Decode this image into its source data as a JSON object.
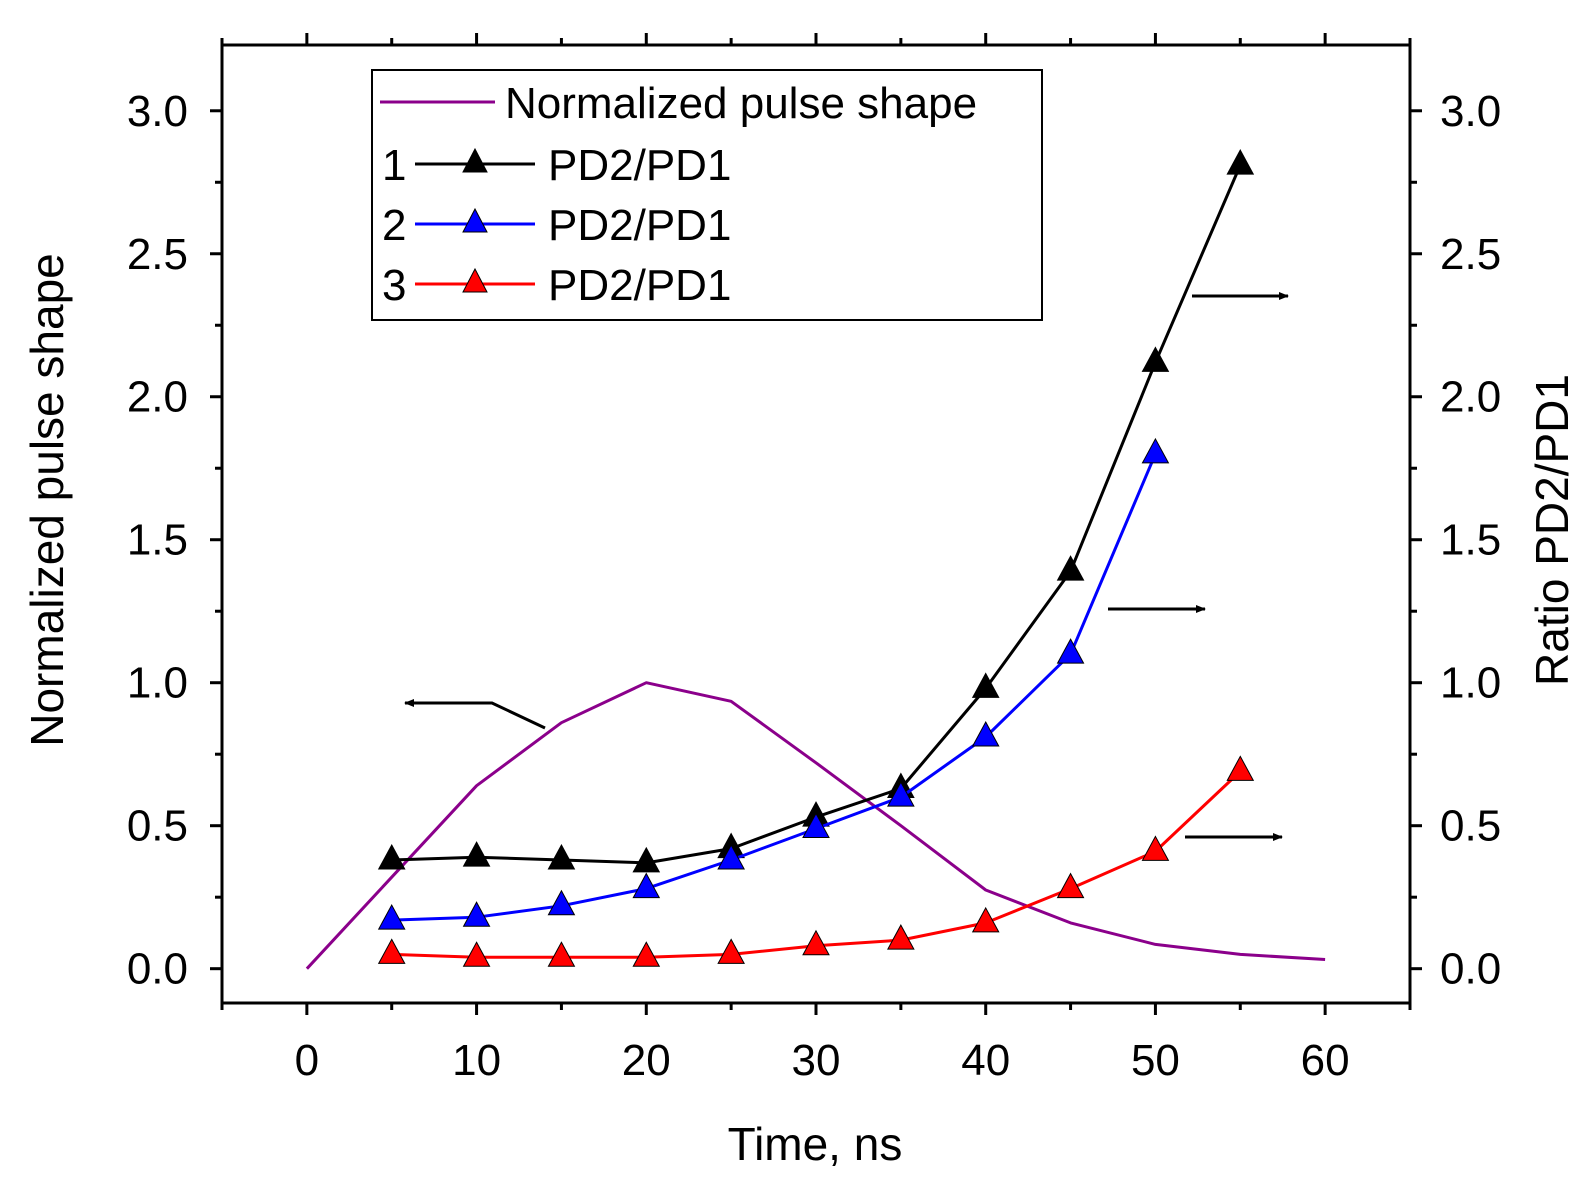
{
  "chart_data": {
    "type": "line",
    "title": "",
    "xlabel": "Time, ns",
    "ylabel": "Normalized pulse shape",
    "y2label": "Ratio PD2/PD1",
    "xlim": [
      -5,
      65
    ],
    "ylim": [
      -0.12,
      3.23
    ],
    "x_ticks": [
      "0",
      "10",
      "20",
      "30",
      "40",
      "50",
      "60"
    ],
    "y_ticks": [
      "0.0",
      "0.5",
      "1.0",
      "1.5",
      "2.0",
      "2.5",
      "3.0"
    ],
    "y2_ticks": [
      "0.0",
      "0.5",
      "1.0",
      "1.5",
      "2.0",
      "2.5",
      "3.0"
    ],
    "grid": false,
    "legend_position": "top-left",
    "series": [
      {
        "name": "Normalized pulse shape",
        "prefix": "",
        "color": "#8b008b",
        "marker": "none",
        "axis": "left",
        "x": [
          0,
          5,
          10,
          15,
          20,
          25,
          30,
          35,
          40,
          45,
          50,
          55,
          60
        ],
        "values": [
          0.0,
          0.32,
          0.64,
          0.86,
          1.0,
          0.935,
          0.72,
          0.5,
          0.275,
          0.16,
          0.085,
          0.05,
          0.032
        ]
      },
      {
        "name": "PD2/PD1",
        "prefix": "1",
        "color": "#000000",
        "marker": "triangle",
        "axis": "right",
        "x": [
          5,
          10,
          15,
          20,
          25,
          30,
          35,
          40,
          45,
          50,
          55
        ],
        "values": [
          0.38,
          0.39,
          0.38,
          0.37,
          0.42,
          0.53,
          0.63,
          0.98,
          1.39,
          2.12,
          2.81
        ]
      },
      {
        "name": "PD2/PD1",
        "prefix": "2",
        "color": "#0000ff",
        "marker": "triangle",
        "axis": "right",
        "x": [
          5,
          10,
          15,
          20,
          25,
          30,
          35,
          40,
          45,
          50
        ],
        "values": [
          0.17,
          0.18,
          0.22,
          0.28,
          0.38,
          0.49,
          0.6,
          0.81,
          1.1,
          1.8
        ]
      },
      {
        "name": "PD2/PD1",
        "prefix": "3",
        "color": "#ff0000",
        "marker": "triangle",
        "axis": "right",
        "x": [
          5,
          10,
          15,
          20,
          25,
          30,
          35,
          40,
          45,
          50,
          55
        ],
        "values": [
          0.05,
          0.04,
          0.04,
          0.04,
          0.05,
          0.08,
          0.1,
          0.16,
          0.28,
          0.41,
          0.69
        ]
      }
    ],
    "annotations": [
      {
        "type": "arrow",
        "direction": "left",
        "points_to": "left axis",
        "series": "Normalized pulse shape"
      },
      {
        "type": "arrow",
        "direction": "right",
        "points_to": "right axis",
        "series": "1 PD2/PD1"
      },
      {
        "type": "arrow",
        "direction": "right",
        "points_to": "right axis",
        "series": "2 PD2/PD1"
      },
      {
        "type": "arrow",
        "direction": "right",
        "points_to": "right axis",
        "series": "3 PD2/PD1"
      }
    ]
  }
}
